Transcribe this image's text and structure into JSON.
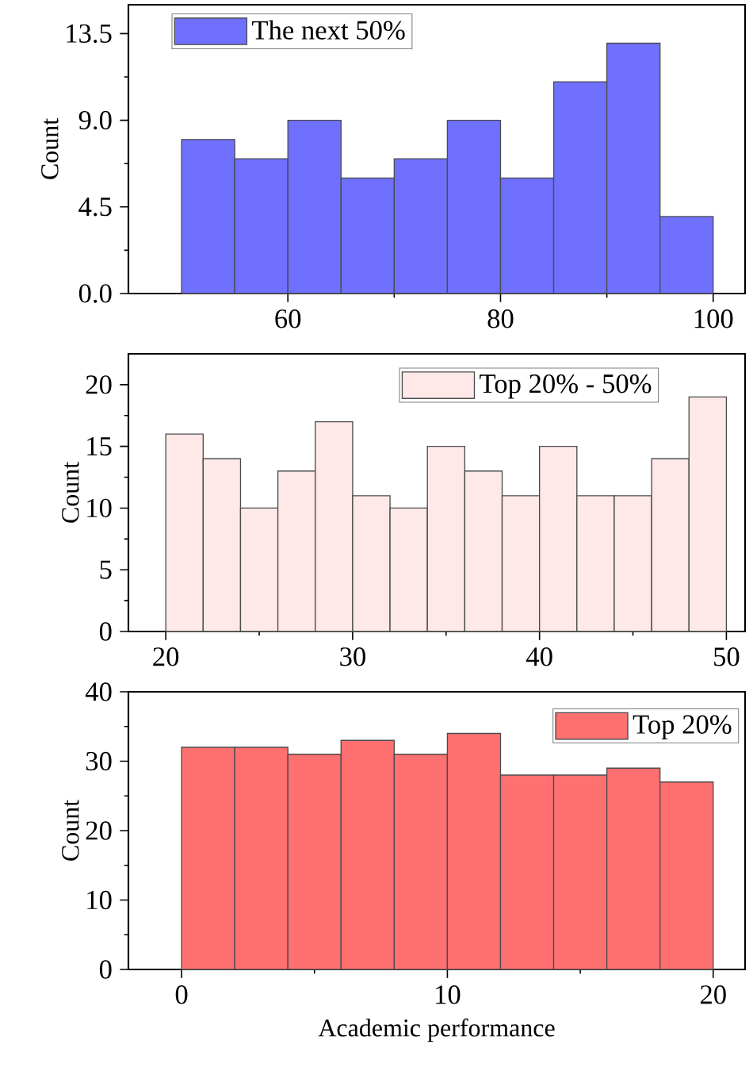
{
  "chart_data": [
    {
      "type": "histogram",
      "ylabel": "Count",
      "bins": [
        50,
        55,
        60,
        65,
        70,
        75,
        80,
        85,
        90,
        95,
        100
      ],
      "series": [
        {
          "name": "The next 50%",
          "color": "#7070ff",
          "values": [
            8,
            7,
            9,
            6,
            7,
            9,
            6,
            11,
            13,
            4
          ]
        }
      ],
      "xlim": [
        45,
        103
      ],
      "xticks": [
        60,
        80,
        100
      ],
      "ylim": [
        0,
        15
      ],
      "yticks": [
        {
          "value": 0,
          "label": "0.0"
        },
        4.5,
        {
          "value": 9,
          "label": "9.0"
        },
        13.5
      ],
      "legend": "top left"
    },
    {
      "type": "histogram",
      "ylabel": "Count",
      "bins": [
        20,
        22,
        24,
        26,
        28,
        30,
        32,
        34,
        36,
        38,
        40,
        42,
        44,
        46,
        48,
        50
      ],
      "series": [
        {
          "name": "Top 20% - 50%",
          "color": "#ffe8e8",
          "values": [
            16,
            14,
            10,
            13,
            17,
            11,
            10,
            15,
            13,
            11,
            15,
            11,
            11,
            14,
            19
          ]
        }
      ],
      "xlim": [
        18,
        51
      ],
      "xticks": [
        20,
        30,
        40,
        50
      ],
      "ylim": [
        0,
        22.5
      ],
      "yticks": [
        0,
        5,
        10,
        15,
        20
      ],
      "legend": "top"
    },
    {
      "type": "histogram",
      "ylabel": "Count",
      "xlabel": "Academic performance",
      "bins": [
        0,
        2,
        4,
        6,
        8,
        10,
        12,
        14,
        16,
        18,
        20
      ],
      "series": [
        {
          "name": "Top 20%",
          "color": "#ff7070",
          "values": [
            32,
            32,
            31,
            33,
            31,
            34,
            28,
            28,
            29,
            27
          ]
        }
      ],
      "xlim": [
        -2,
        21.2
      ],
      "xticks": [
        0,
        10,
        20
      ],
      "ylim": [
        0,
        40
      ],
      "yticks": [
        0,
        10,
        20,
        30,
        40
      ],
      "legend": "top right"
    }
  ]
}
